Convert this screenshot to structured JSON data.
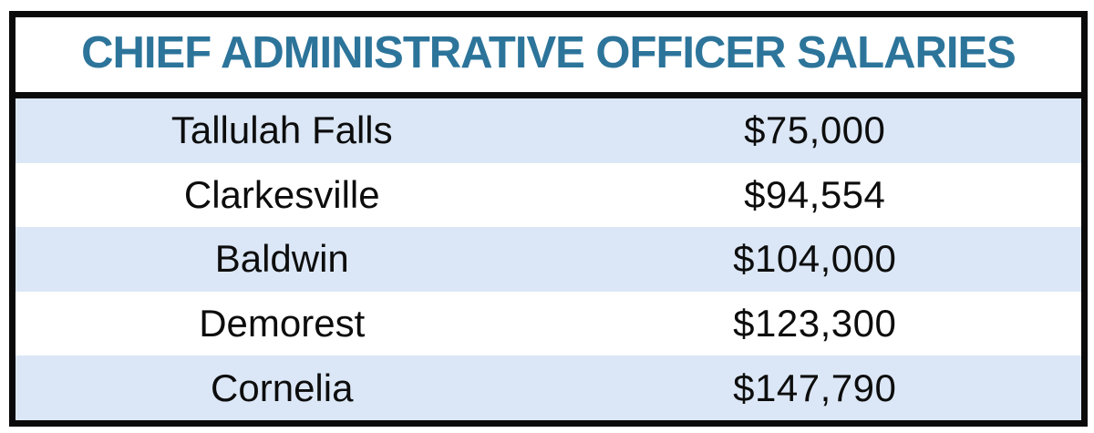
{
  "table": {
    "title": "CHIEF ADMINISTRATIVE OFFICER SALARIES",
    "rows": [
      {
        "name": "Tallulah Falls",
        "salary": "$75,000"
      },
      {
        "name": "Clarkesville",
        "salary": "$94,554"
      },
      {
        "name": "Baldwin",
        "salary": "$104,000"
      },
      {
        "name": "Demorest",
        "salary": "$123,300"
      },
      {
        "name": "Cornelia",
        "salary": "$147,790"
      }
    ],
    "colors": {
      "title_text": "#2c749a",
      "band_blue": "#dbe7f6",
      "band_white": "#ffffff",
      "border": "#0a0a0a",
      "body_text": "#0d0d0d"
    }
  },
  "chart_data": {
    "type": "table",
    "title": "CHIEF ADMINISTRATIVE OFFICER SALARIES",
    "categories": [
      "Tallulah Falls",
      "Clarkesville",
      "Baldwin",
      "Demorest",
      "Cornelia"
    ],
    "values": [
      75000,
      94554,
      104000,
      123300,
      147790
    ],
    "value_labels": [
      "$75,000",
      "$94,554",
      "$104,000",
      "$123,300",
      "$147,790"
    ],
    "layout": "two-column banded table, alternating light-blue/white rows, thick black outer border, title row separated by thick black rule"
  }
}
